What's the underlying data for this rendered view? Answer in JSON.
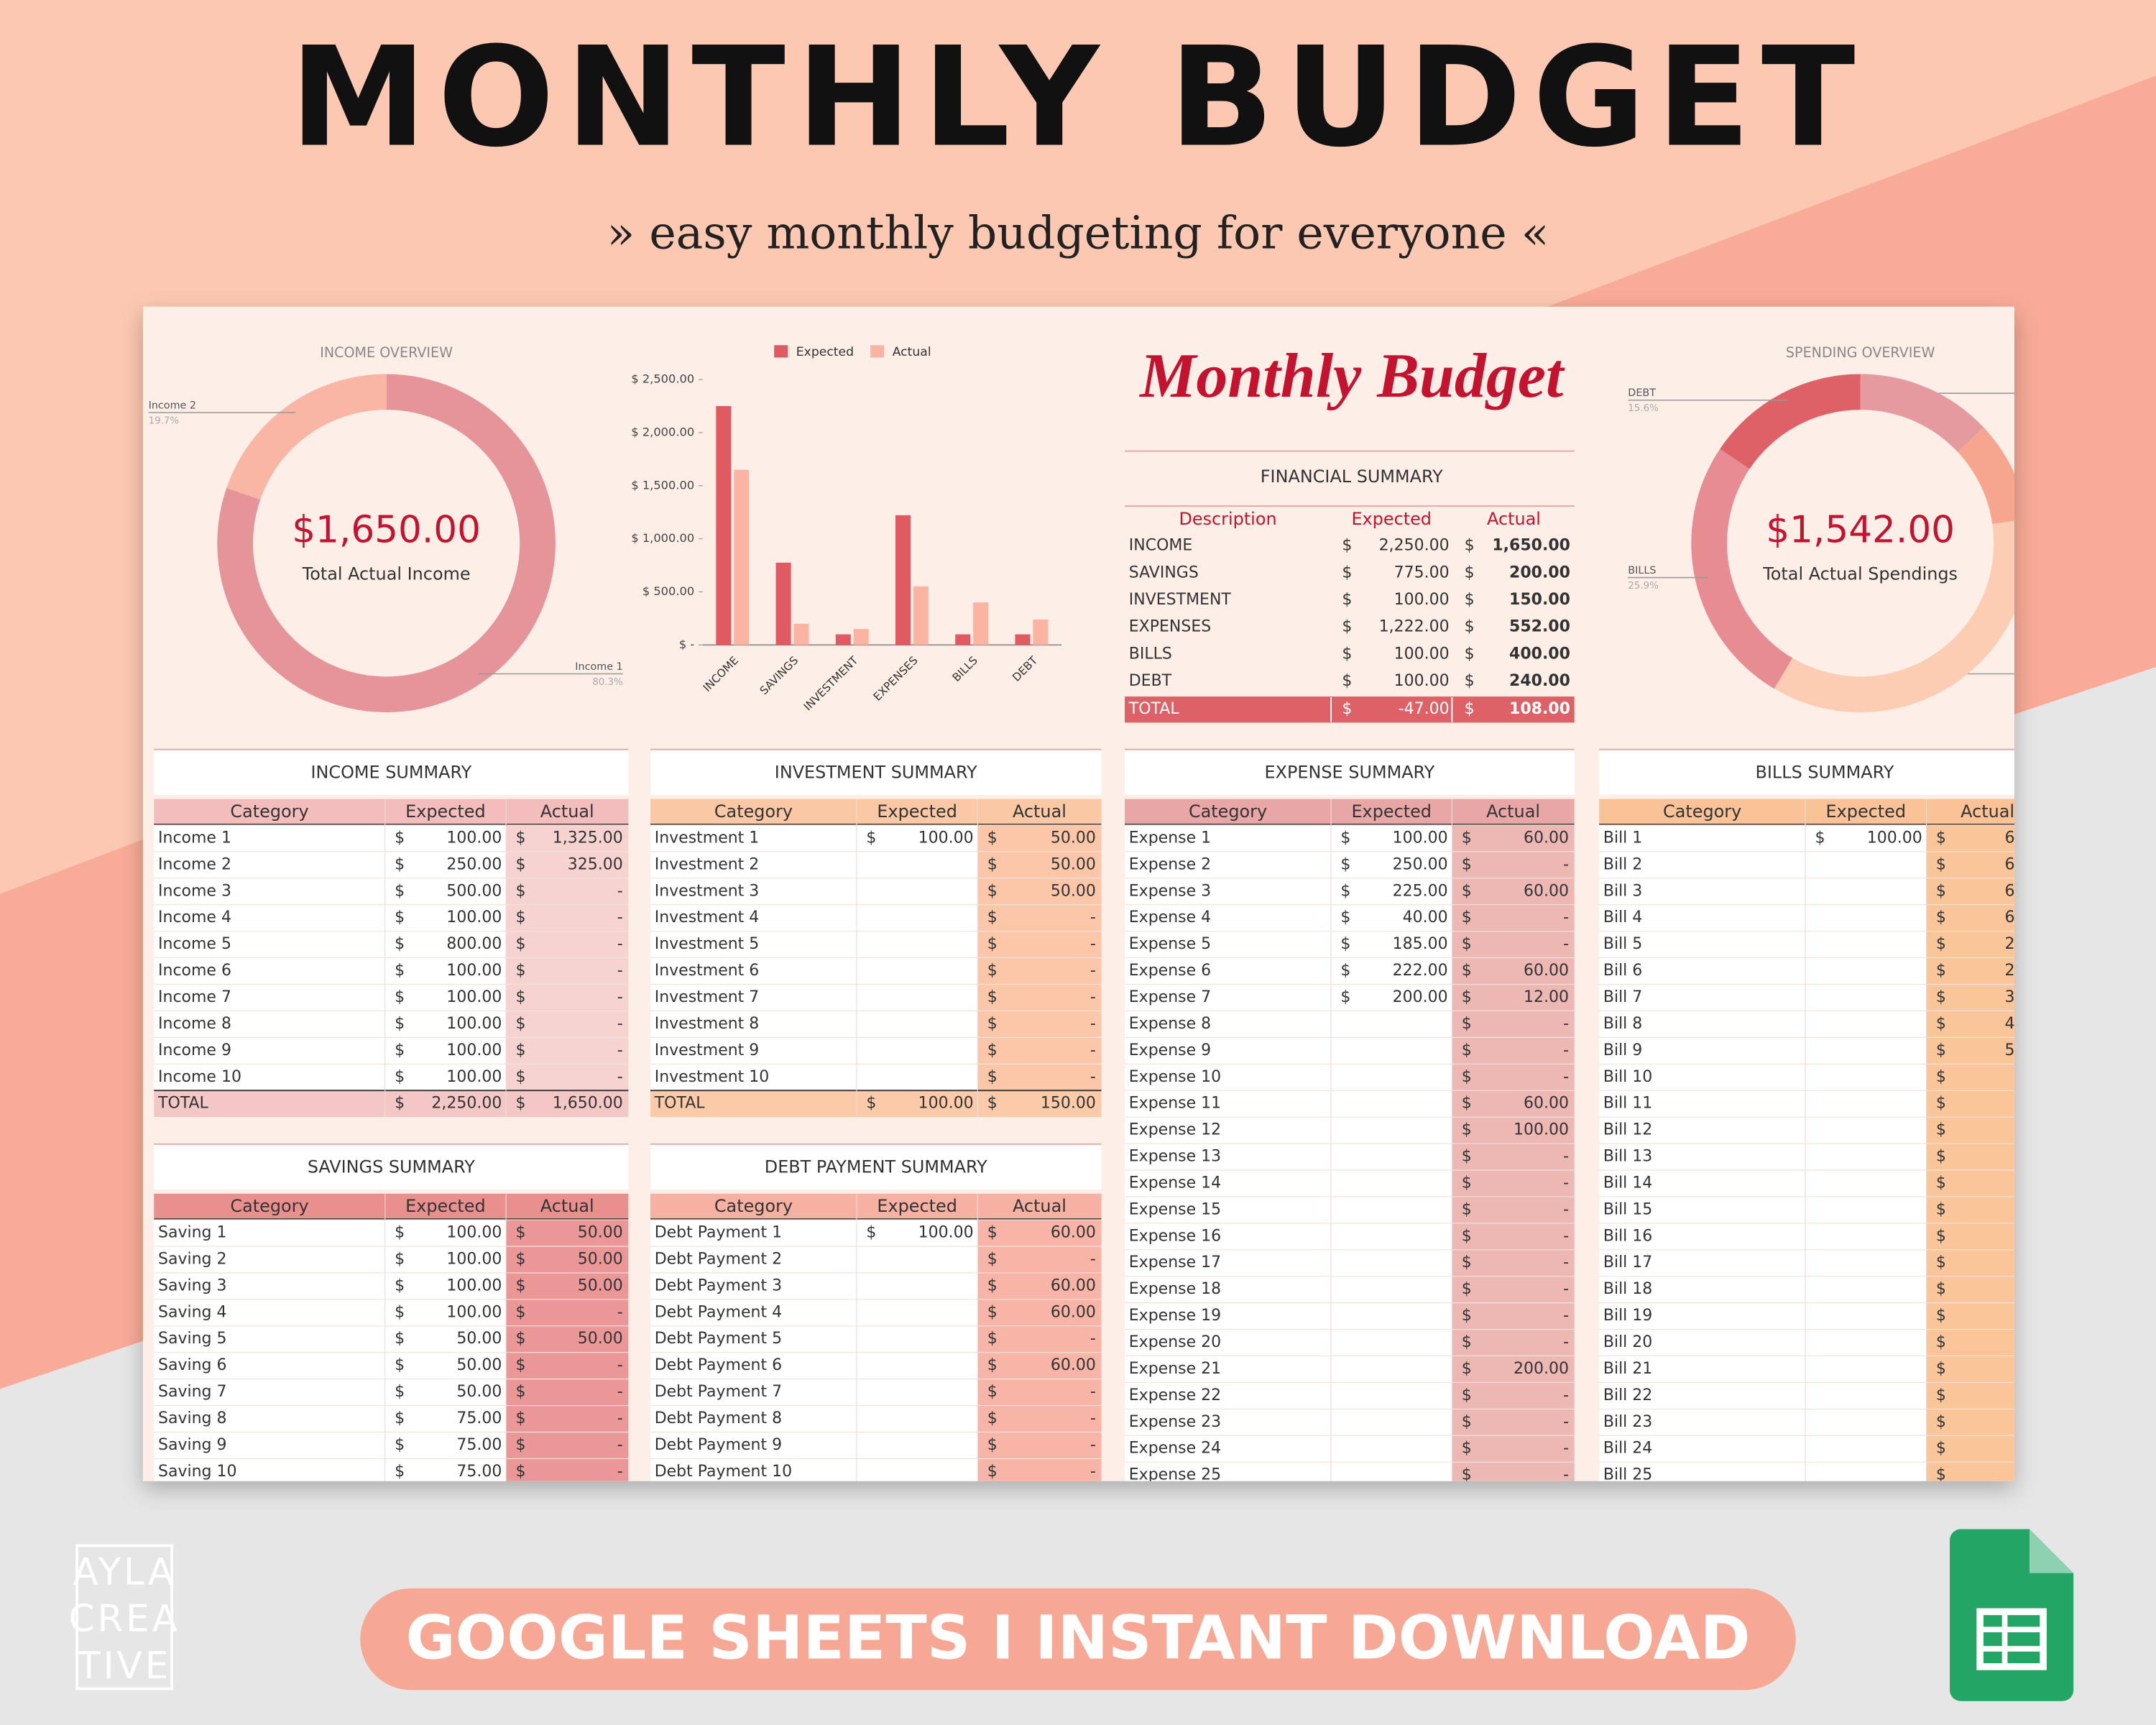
{
  "header": {
    "title": "MONTHLY BUDGET",
    "subtitle": "» easy monthly budgeting for everyone «"
  },
  "currency": "$",
  "income_overview": {
    "title": "INCOME OVERVIEW",
    "center_value": "$1,650.00",
    "center_label": "Total Actual Income",
    "labels": [
      "Income 1",
      "Income 2"
    ],
    "value_labels": [
      "80.3%",
      "19.7%"
    ],
    "values": [
      80.3,
      19.7
    ],
    "colors": [
      "#e5959a",
      "#f9b6a4"
    ]
  },
  "bar_chart": {
    "type": "bar",
    "categories": [
      "INCOME",
      "SAVINGS",
      "INVESTMENT",
      "EXPENSES",
      "BILLS",
      "DEBT"
    ],
    "series": [
      {
        "name": "Expected",
        "color": "#e05a61",
        "values": [
          2250,
          775,
          100,
          1222,
          100,
          100
        ]
      },
      {
        "name": "Actual",
        "color": "#fbb4a2",
        "values": [
          1650,
          200,
          150,
          552,
          400,
          240
        ]
      }
    ],
    "ylim": [
      0,
      2500
    ],
    "yticks": [
      {
        "value": 0,
        "label": "$ -"
      },
      {
        "value": 500,
        "label": "$ 500.00"
      },
      {
        "value": 1000,
        "label": "$ 1,000.00"
      },
      {
        "value": 1500,
        "label": "$ 1,500.00"
      },
      {
        "value": 2000,
        "label": "$ 2,000.00"
      },
      {
        "value": 2500,
        "label": "$ 2,500.00"
      }
    ]
  },
  "spending_overview": {
    "title": "SPENDING OVERVIEW",
    "center_value": "$1,542.00",
    "center_label": "Total Actual Spendings",
    "labels": [
      null,
      null,
      null,
      "BILLS",
      "DEBT"
    ],
    "value_labels": [
      null,
      null,
      null,
      "25.9%",
      "15.6%"
    ],
    "values": [
      13.0,
      9.7,
      35.8,
      25.9,
      15.6
    ],
    "colors": [
      "#e59aa0",
      "#f6a68f",
      "#fccdb2",
      "#e68c92",
      "#dd6166"
    ]
  },
  "sheet_title": "Monthly Budget",
  "financial_summary": {
    "title": "FINANCIAL SUMMARY",
    "columns": [
      "Description",
      "Expected",
      "Actual"
    ],
    "rows": [
      [
        "INCOME",
        "2,250.00",
        "1,650.00"
      ],
      [
        "SAVINGS",
        "775.00",
        "200.00"
      ],
      [
        "INVESTMENT",
        "100.00",
        "150.00"
      ],
      [
        "EXPENSES",
        "1,222.00",
        "552.00"
      ],
      [
        "BILLS",
        "100.00",
        "400.00"
      ],
      [
        "DEBT",
        "100.00",
        "240.00"
      ]
    ],
    "total": [
      "TOTAL",
      "-47.00",
      "108.00"
    ]
  },
  "tables": [
    {
      "title": "INCOME SUMMARY",
      "columns": [
        "Category",
        "Expected",
        "Actual"
      ],
      "rows": [
        [
          "Income 1",
          "100.00",
          "1,325.00"
        ],
        [
          "Income 2",
          "250.00",
          "325.00"
        ],
        [
          "Income 3",
          "500.00",
          "-"
        ],
        [
          "Income 4",
          "100.00",
          "-"
        ],
        [
          "Income 5",
          "800.00",
          "-"
        ],
        [
          "Income 6",
          "100.00",
          "-"
        ],
        [
          "Income 7",
          "100.00",
          "-"
        ],
        [
          "Income 8",
          "100.00",
          "-"
        ],
        [
          "Income 9",
          "100.00",
          "-"
        ],
        [
          "Income 10",
          "100.00",
          "-"
        ]
      ],
      "total": [
        "TOTAL",
        "2,250.00",
        "1,650.00"
      ]
    },
    {
      "title": "INVESTMENT SUMMARY",
      "columns": [
        "Category",
        "Expected",
        "Actual"
      ],
      "rows": [
        [
          "Investment 1",
          "100.00",
          "50.00"
        ],
        [
          "Investment 2",
          null,
          "50.00"
        ],
        [
          "Investment 3",
          null,
          "50.00"
        ],
        [
          "Investment 4",
          null,
          "-"
        ],
        [
          "Investment 5",
          null,
          "-"
        ],
        [
          "Investment 6",
          null,
          "-"
        ],
        [
          "Investment 7",
          null,
          "-"
        ],
        [
          "Investment 8",
          null,
          "-"
        ],
        [
          "Investment 9",
          null,
          "-"
        ],
        [
          "Investment 10",
          null,
          "-"
        ]
      ],
      "total": [
        "TOTAL",
        "100.00",
        "150.00"
      ]
    },
    {
      "title": "EXPENSE SUMMARY",
      "columns": [
        "Category",
        "Expected",
        "Actual"
      ],
      "rows": [
        [
          "Expense 1",
          "100.00",
          "60.00"
        ],
        [
          "Expense 2",
          "250.00",
          "-"
        ],
        [
          "Expense 3",
          "225.00",
          "60.00"
        ],
        [
          "Expense 4",
          "40.00",
          "-"
        ],
        [
          "Expense 5",
          "185.00",
          "-"
        ],
        [
          "Expense 6",
          "222.00",
          "60.00"
        ],
        [
          "Expense 7",
          "200.00",
          "12.00"
        ],
        [
          "Expense 8",
          null,
          "-"
        ],
        [
          "Expense 9",
          null,
          "-"
        ],
        [
          "Expense 10",
          null,
          "-"
        ],
        [
          "Expense 11",
          null,
          "60.00"
        ],
        [
          "Expense 12",
          null,
          "100.00"
        ],
        [
          "Expense 13",
          null,
          "-"
        ],
        [
          "Expense 14",
          null,
          "-"
        ],
        [
          "Expense 15",
          null,
          "-"
        ],
        [
          "Expense 16",
          null,
          "-"
        ],
        [
          "Expense 17",
          null,
          "-"
        ],
        [
          "Expense 18",
          null,
          "-"
        ],
        [
          "Expense 19",
          null,
          "-"
        ],
        [
          "Expense 20",
          null,
          "-"
        ],
        [
          "Expense 21",
          null,
          "200.00"
        ],
        [
          "Expense 22",
          null,
          "-"
        ],
        [
          "Expense 23",
          null,
          "-"
        ],
        [
          "Expense 24",
          null,
          "-"
        ],
        [
          "Expense 25",
          null,
          "-"
        ]
      ]
    },
    {
      "title": "BILLS SUMMARY",
      "columns": [
        "Category",
        "Expected",
        "Actual"
      ],
      "rows": [
        [
          "Bill 1",
          "100.00",
          "6"
        ],
        [
          "Bill 2",
          null,
          "6"
        ],
        [
          "Bill 3",
          null,
          "6"
        ],
        [
          "Bill 4",
          null,
          "6"
        ],
        [
          "Bill 5",
          null,
          "2"
        ],
        [
          "Bill 6",
          null,
          "2"
        ],
        [
          "Bill 7",
          null,
          "3"
        ],
        [
          "Bill 8",
          null,
          "4"
        ],
        [
          "Bill 9",
          null,
          "5"
        ],
        [
          "Bill 10",
          null,
          null
        ],
        [
          "Bill 11",
          null,
          null
        ],
        [
          "Bill 12",
          null,
          null
        ],
        [
          "Bill 13",
          null,
          null
        ],
        [
          "Bill 14",
          null,
          null
        ],
        [
          "Bill 15",
          null,
          null
        ],
        [
          "Bill 16",
          null,
          null
        ],
        [
          "Bill 17",
          null,
          null
        ],
        [
          "Bill 18",
          null,
          null
        ],
        [
          "Bill 19",
          null,
          null
        ],
        [
          "Bill 20",
          null,
          null
        ],
        [
          "Bill 21",
          null,
          null
        ],
        [
          "Bill 22",
          null,
          null
        ],
        [
          "Bill 23",
          null,
          null
        ],
        [
          "Bill 24",
          null,
          null
        ],
        [
          "Bill 25",
          null,
          null
        ]
      ]
    },
    {
      "title": "SAVINGS SUMMARY",
      "columns": [
        "Category",
        "Expected",
        "Actual"
      ],
      "rows": [
        [
          "Saving 1",
          "100.00",
          "50.00"
        ],
        [
          "Saving 2",
          "100.00",
          "50.00"
        ],
        [
          "Saving 3",
          "100.00",
          "50.00"
        ],
        [
          "Saving 4",
          "100.00",
          "-"
        ],
        [
          "Saving 5",
          "50.00",
          "50.00"
        ],
        [
          "Saving 6",
          "50.00",
          "-"
        ],
        [
          "Saving 7",
          "50.00",
          "-"
        ],
        [
          "Saving 8",
          "75.00",
          "-"
        ],
        [
          "Saving 9",
          "75.00",
          "-"
        ],
        [
          "Saving 10",
          "75.00",
          "-"
        ]
      ]
    },
    {
      "title": "DEBT PAYMENT SUMMARY",
      "columns": [
        "Category",
        "Expected",
        "Actual"
      ],
      "rows": [
        [
          "Debt Payment 1",
          "100.00",
          "60.00"
        ],
        [
          "Debt Payment 2",
          null,
          "-"
        ],
        [
          "Debt Payment 3",
          null,
          "60.00"
        ],
        [
          "Debt Payment 4",
          null,
          "60.00"
        ],
        [
          "Debt Payment 5",
          null,
          "-"
        ],
        [
          "Debt Payment 6",
          null,
          "60.00"
        ],
        [
          "Debt Payment 7",
          null,
          "-"
        ],
        [
          "Debt Payment 8",
          null,
          "-"
        ],
        [
          "Debt Payment 9",
          null,
          "-"
        ],
        [
          "Debt Payment 10",
          null,
          "-"
        ]
      ]
    }
  ],
  "footer": {
    "banner": "GOOGLE SHEETS  I  INSTANT DOWNLOAD",
    "logo": [
      "AYLA",
      "CREA",
      "TIVE"
    ]
  }
}
